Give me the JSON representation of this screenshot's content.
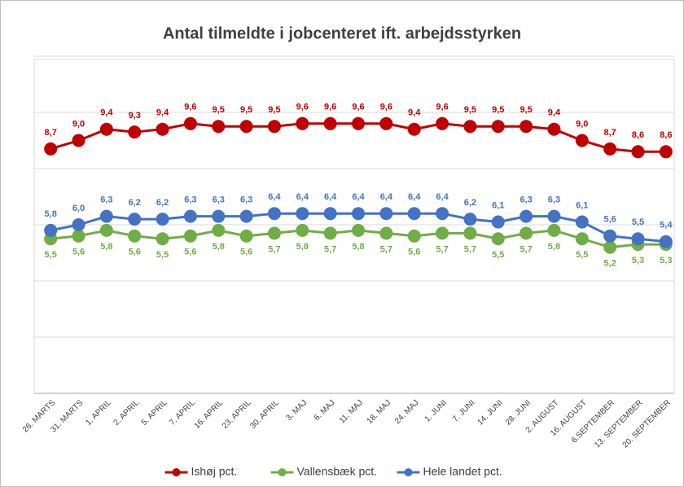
{
  "chart_data": {
    "type": "line",
    "title": "Antal tilmeldte i jobcenteret ift. arbejdsstyrken",
    "categories": [
      "26. MARTS",
      "31. MARTS",
      "1. APRIL",
      "2. APRIL",
      "5. APRIL",
      "7. APRIL",
      "16. APRIL",
      "23. APRIL",
      "30. APRIL",
      "3. MAJ",
      "6. MAJ",
      "11. MAJ",
      "18. MAJ",
      "24. MAJ",
      "1. JUNI",
      "7. JUNI",
      "14. JUNI",
      "28. JUNI",
      "2. AUGUST",
      "16. AUGUST",
      "6.SEPTEMBER",
      "13. SEPTEMBER",
      "20. SEPTEMBER"
    ],
    "series": [
      {
        "name": "Ishøj pct.",
        "color": "#c00000",
        "label_position": "above",
        "values": [
          8.7,
          9.0,
          9.4,
          9.3,
          9.4,
          9.6,
          9.5,
          9.5,
          9.5,
          9.6,
          9.6,
          9.6,
          9.6,
          9.4,
          9.6,
          9.5,
          9.5,
          9.5,
          9.4,
          9.0,
          8.7,
          8.6,
          8.6
        ],
        "value_labels": [
          "8,7",
          "9,0",
          "9,4",
          "9,3",
          "9,4",
          "9,6",
          "9,5",
          "9,5",
          "9,5",
          "9,6",
          "9,6",
          "9,6",
          "9,6",
          "9,4",
          "9,6",
          "9,5",
          "9,5",
          "9,5",
          "9,4",
          "9,0",
          "8,7",
          "8,6",
          "8,6"
        ]
      },
      {
        "name": "Vallensbæk pct.",
        "color": "#70ad47",
        "label_position": "below",
        "values": [
          5.5,
          5.6,
          5.8,
          5.6,
          5.5,
          5.6,
          5.8,
          5.6,
          5.7,
          5.8,
          5.7,
          5.8,
          5.7,
          5.6,
          5.7,
          5.7,
          5.5,
          5.7,
          5.8,
          5.5,
          5.2,
          5.3,
          5.3
        ],
        "value_labels": [
          "5,5",
          "5,6",
          "5,8",
          "5,6",
          "5,5",
          "5,6",
          "5,8",
          "5,6",
          "5,7",
          "5,8",
          "5,7",
          "5,8",
          "5,7",
          "5,6",
          "5,7",
          "5,7",
          "5,5",
          "5,7",
          "5,8",
          "5,5",
          "5,2",
          "5,3",
          "5,3"
        ]
      },
      {
        "name": "Hele landet pct.",
        "color": "#4472c4",
        "label_position": "above",
        "values": [
          5.8,
          6.0,
          6.3,
          6.2,
          6.2,
          6.3,
          6.3,
          6.3,
          6.4,
          6.4,
          6.4,
          6.4,
          6.4,
          6.4,
          6.4,
          6.2,
          6.1,
          6.3,
          6.3,
          6.1,
          5.6,
          5.5,
          5.4
        ],
        "value_labels": [
          "5,8",
          "6,0",
          "6,3",
          "6,2",
          "6,2",
          "6,3",
          "6,3",
          "6,3",
          "6,4",
          "6,4",
          "6,4",
          "6,4",
          "6,4",
          "6,4",
          "6,4",
          "6,2",
          "6,1",
          "6,3",
          "6,3",
          "6,1",
          "5,6",
          "5,5",
          "5,4"
        ]
      }
    ],
    "ylim": [
      0,
      12
    ],
    "yticks": [
      0,
      2,
      4,
      6,
      8,
      10,
      12
    ],
    "grid": true,
    "legend": "bottom"
  }
}
